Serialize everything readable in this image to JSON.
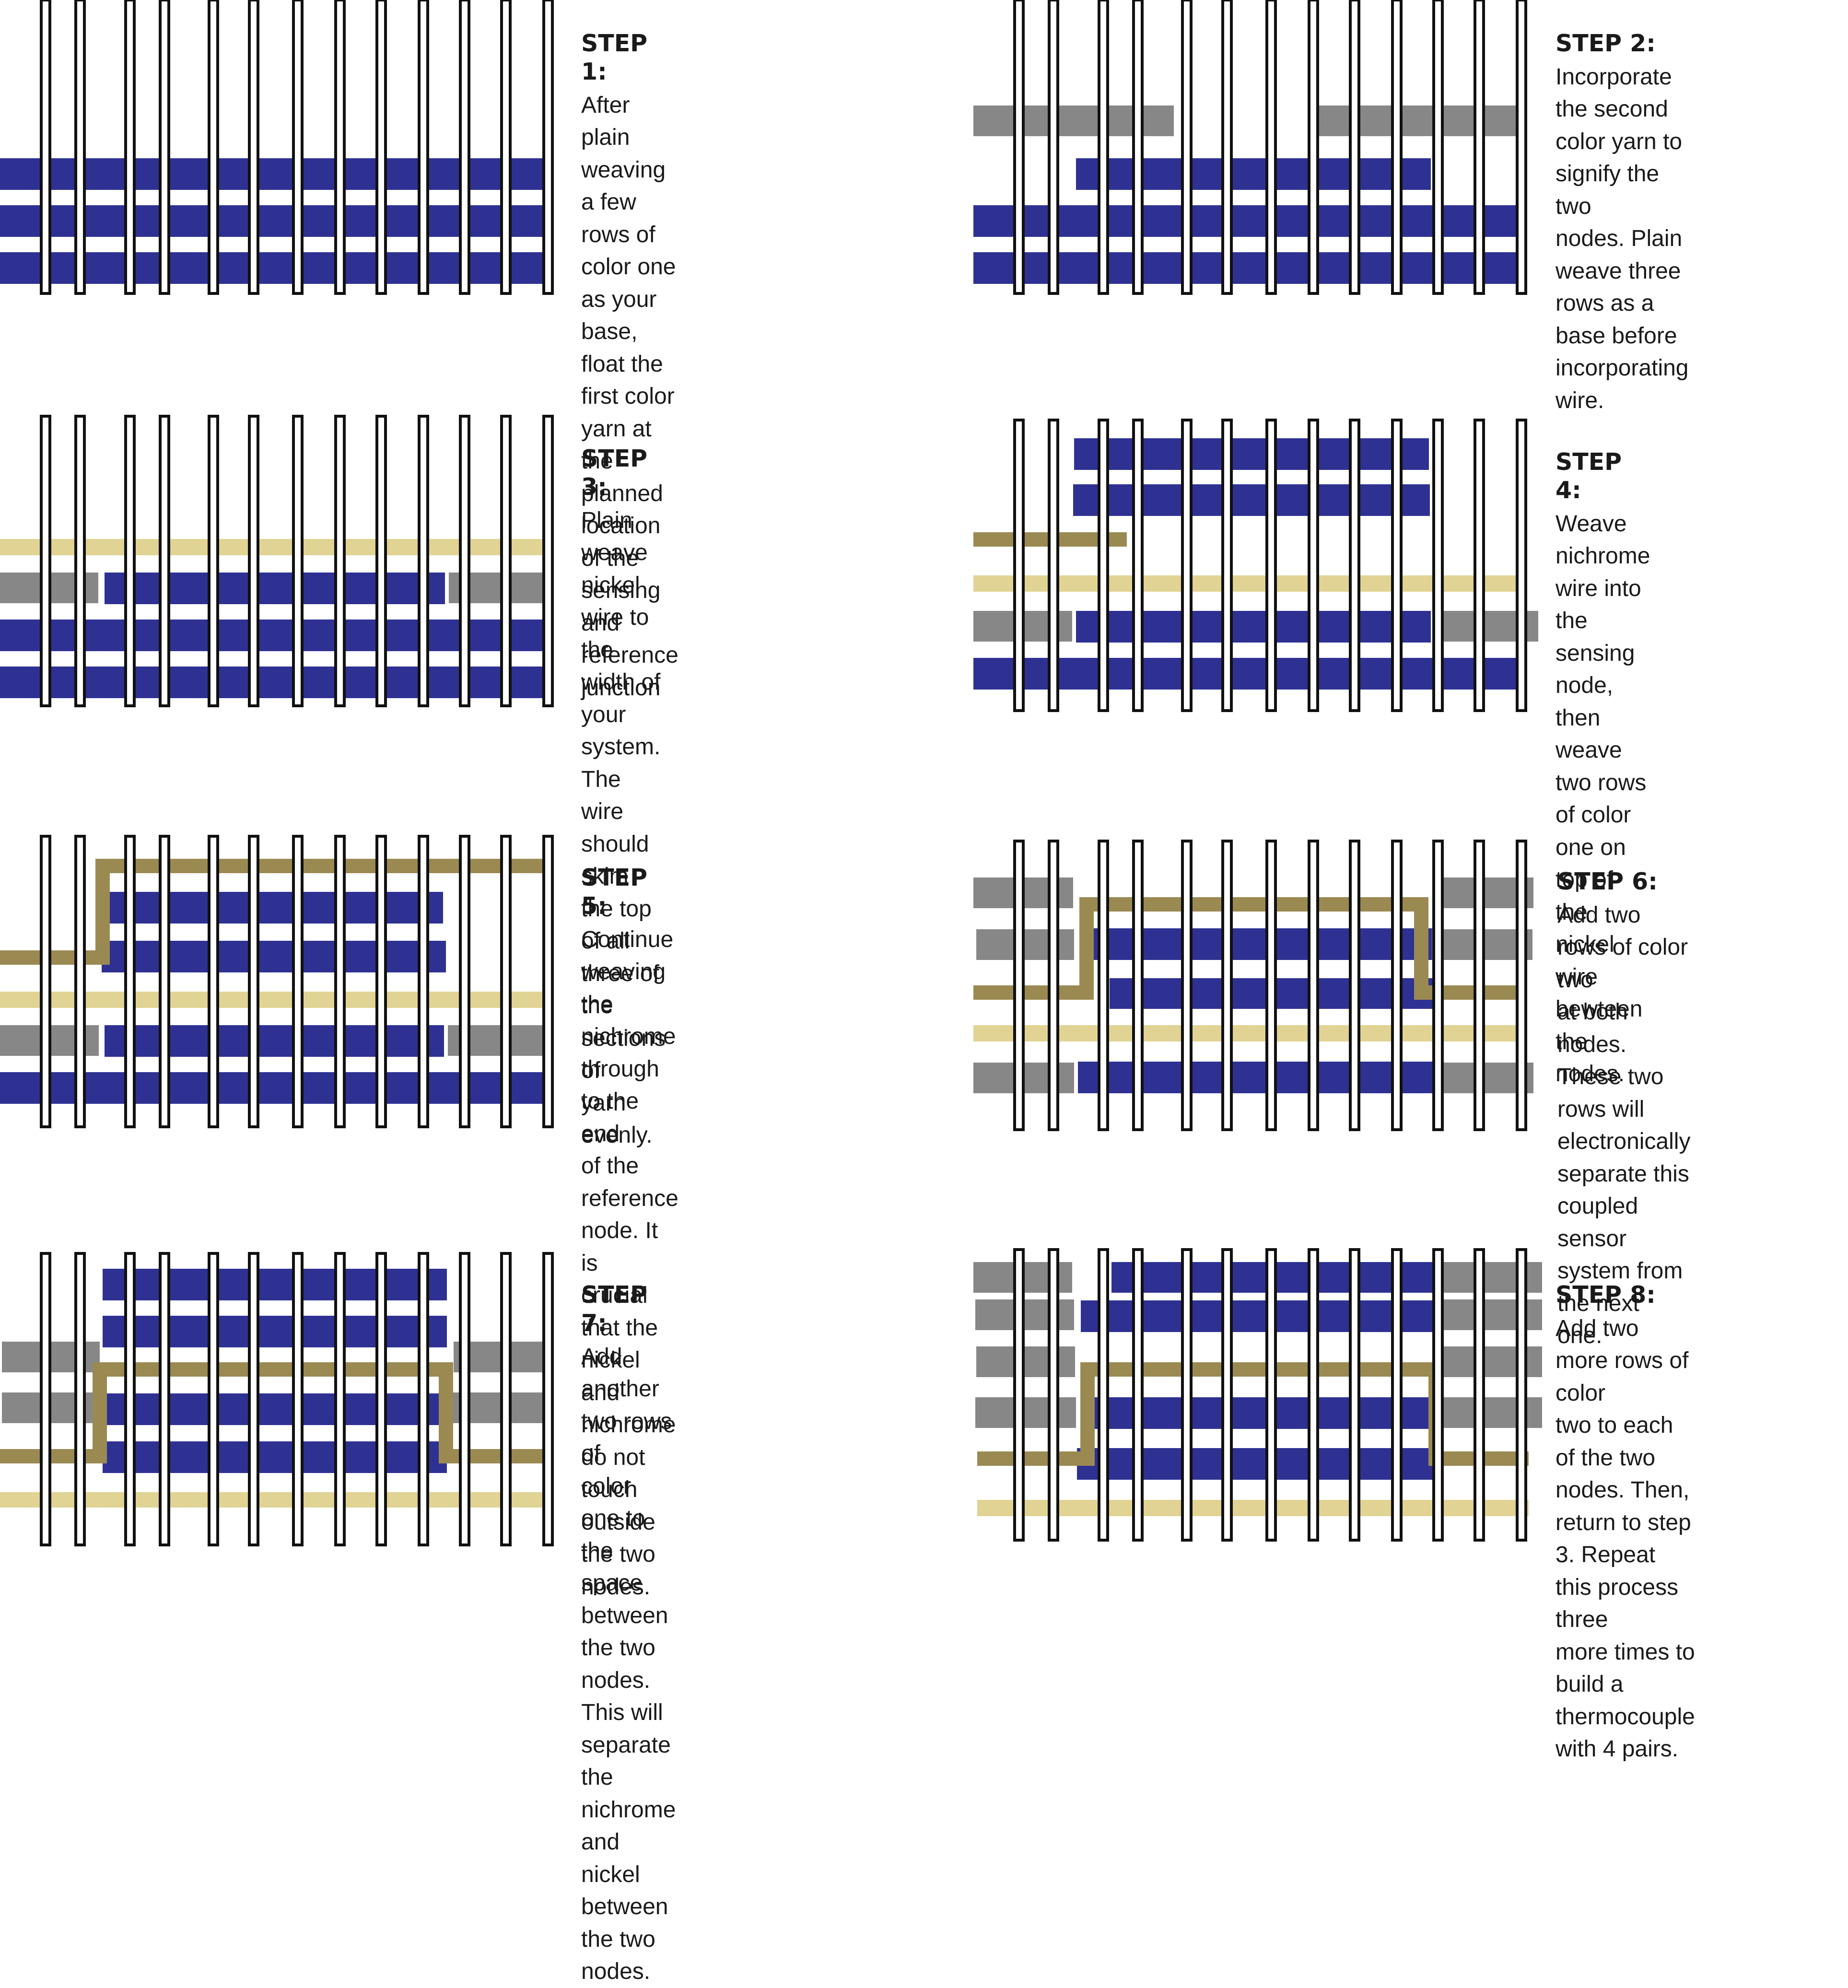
{
  "colors": {
    "color_one": "#2e3192",
    "color_two": "#878787",
    "nickel": "#e0d393",
    "nichrome": "#9a8a52",
    "warp_fill": "#ffffff",
    "warp_stroke": "#111111"
  },
  "steps": [
    {
      "title": "STEP 1:",
      "body": "After plain weaving a few\nrows of color one as your\nbase, float the first color\nyarn at the planned\nlocation of the sensing and\nreference junction"
    },
    {
      "title": "STEP 2:",
      "body": "Incorporate the second\ncolor yarn to signify the two\nnodes. Plain weave three\nrows as a base before\nincorporating wire."
    },
    {
      "title": "STEP 3:",
      "body": "Plain weave nickel wire to\nthe width of your system.\nThe wire should skim the top\nof all three of the sections of\nyarn evenly."
    },
    {
      "title": "STEP 4:",
      "body": "Weave nichrome wire into\nthe sensing node, then\nweave two rows of color\none on top of the nickel\nwire bewteen the nodes."
    },
    {
      "title": "STEP 5:",
      "body": "Continue weaving the\nnichrome through to the end\nof the reference node. It is\ncrucial that the nickel and\nnichrome do not touch\noutside the two nodes."
    },
    {
      "title": "STEP 6:",
      "body": "Add two rows of color two\nat both nodes. These two\nrows will electronically\nseparate this coupled\nsensor system from the next\none."
    },
    {
      "title": "STEP 7:",
      "body": "Add another two rows of\ncolor one to the space\nbetween the two nodes.\nThis will separate the\nnichrome and nickel\nbetween the two nodes."
    },
    {
      "title": "STEP 8:",
      "body": "Add two more rows of color\ntwo to each of the two\nnodes. Then, return to step\n3. Repeat this process three\nmore times to build a\nthermocouple with 4 pairs."
    }
  ]
}
